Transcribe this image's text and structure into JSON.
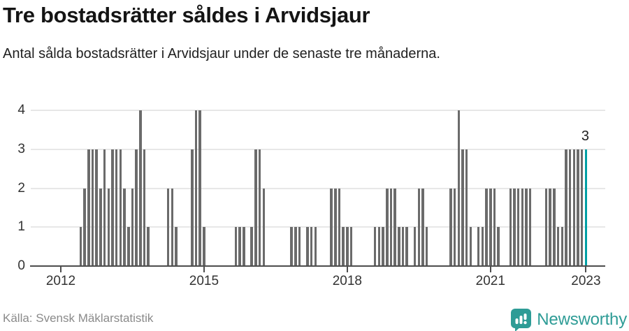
{
  "header": {
    "title": "Tre bostadsrätter såldes i Arvidsjaur",
    "subtitle": "Antal sålda bostadsrätter i Arvidsjaur under de senaste tre månaderna."
  },
  "chart_data": {
    "type": "bar",
    "title": "Tre bostadsrätter såldes i Arvidsjaur",
    "subtitle": "Antal sålda bostadsrätter i Arvidsjaur under de senaste tre månaderna.",
    "frequency": "monthly",
    "x_start_month": "2012-01",
    "x_end_month": "2023-01",
    "values": [
      0,
      0,
      0,
      0,
      0,
      1,
      2,
      3,
      3,
      3,
      2,
      3,
      2,
      3,
      3,
      3,
      2,
      1,
      2,
      3,
      4,
      3,
      1,
      0,
      0,
      0,
      0,
      2,
      2,
      1,
      0,
      0,
      0,
      3,
      4,
      4,
      1,
      0,
      0,
      0,
      0,
      0,
      0,
      0,
      1,
      1,
      1,
      0,
      1,
      3,
      3,
      2,
      0,
      0,
      0,
      0,
      0,
      0,
      1,
      1,
      1,
      0,
      1,
      1,
      1,
      0,
      0,
      0,
      2,
      2,
      2,
      1,
      1,
      1,
      0,
      0,
      0,
      0,
      0,
      1,
      1,
      1,
      2,
      2,
      2,
      1,
      1,
      1,
      0,
      1,
      2,
      2,
      1,
      0,
      0,
      0,
      0,
      0,
      2,
      2,
      4,
      3,
      3,
      1,
      0,
      1,
      1,
      2,
      2,
      2,
      1,
      0,
      0,
      2,
      2,
      2,
      2,
      2,
      2,
      0,
      0,
      0,
      2,
      2,
      2,
      1,
      1,
      3,
      3,
      3,
      3,
      3,
      3
    ],
    "highlight_last_bar": true,
    "last_value_label": "3",
    "ylim": [
      0,
      4
    ],
    "y_ticks": [
      "0",
      "1",
      "2",
      "3",
      "4"
    ],
    "x_tick_labels": [
      "2012",
      "2015",
      "2018",
      "2021",
      "2023"
    ],
    "x_tick_month_indices": [
      0,
      36,
      72,
      108,
      132
    ],
    "grid": "horizontal",
    "legend": "none",
    "colors": {
      "bar": "#6b6b6b",
      "highlight": "#00a0a5"
    }
  },
  "footer": {
    "source": "Källa: Svensk Mäklarstatistik",
    "brand": "Newsworthy",
    "brand_color": "#2e9c96"
  }
}
